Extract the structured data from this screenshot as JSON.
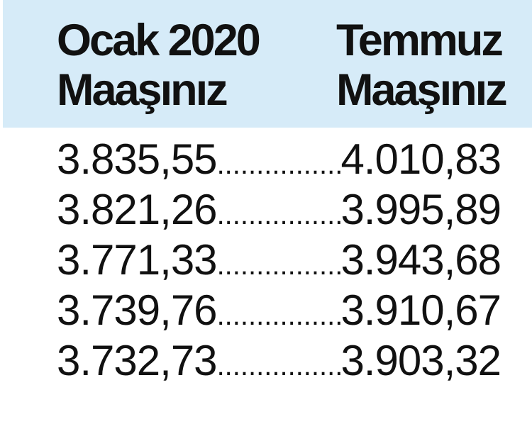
{
  "header": {
    "left": [
      "Ocak 2020",
      "Maaşınız"
    ],
    "right": [
      "Temmuz",
      "Maaşınız"
    ],
    "background": "#d6ebf8"
  },
  "rows": [
    {
      "ocak": "3.835,55",
      "temmuz": "4.010,83"
    },
    {
      "ocak": "3.821,26",
      "temmuz": "3.995,89"
    },
    {
      "ocak": "3.771,33",
      "temmuz": "3.943,68"
    },
    {
      "ocak": "3.739,76",
      "temmuz": "3.910,67"
    },
    {
      "ocak": "3.732,73",
      "temmuz": "3.903,32"
    }
  ]
}
